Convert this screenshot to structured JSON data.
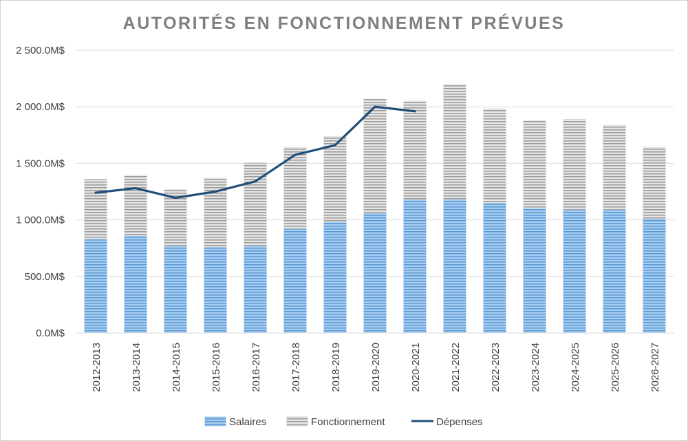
{
  "chart_data": {
    "type": "bar",
    "title": "AUTORITÉS EN FONCTIONNEMENT PRÉVUES",
    "categories": [
      "2012-2013",
      "2013-2014",
      "2014-2015",
      "2015-2016",
      "2016-2017",
      "2017-2018",
      "2018-2019",
      "2019-2020",
      "2020-2021",
      "2021-2022",
      "2022-2023",
      "2023-2024",
      "2024-2025",
      "2025-2026",
      "2026-2027"
    ],
    "series": [
      {
        "name": "Salaires",
        "type": "bar",
        "stacked": true,
        "color": "#5b9bd5",
        "values": [
          830,
          860,
          770,
          760,
          770,
          920,
          980,
          1060,
          1180,
          1180,
          1150,
          1100,
          1090,
          1090,
          1010
        ]
      },
      {
        "name": "Fonctionnement",
        "type": "bar",
        "stacked": true,
        "color": "#a5a5a5",
        "values": [
          530,
          535,
          500,
          615,
          735,
          725,
          760,
          1010,
          875,
          1020,
          835,
          780,
          800,
          750,
          635
        ]
      },
      {
        "name": "Dépenses",
        "type": "line",
        "color": "#1f4e79",
        "values": [
          1240,
          1280,
          1195,
          1250,
          1340,
          1575,
          1660,
          2000,
          1960,
          null,
          null,
          null,
          null,
          null,
          null
        ]
      }
    ],
    "y_ticks": [
      "0.0M$",
      "500.0M$",
      "1 000.0M$",
      "1 500.0M$",
      "2 000.0M$",
      "2 500.0M$"
    ],
    "ylim": [
      0,
      2500
    ],
    "ytick_step": 500,
    "grid": true,
    "legend_position": "bottom"
  }
}
